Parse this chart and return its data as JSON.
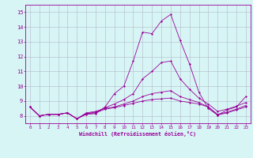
{
  "xlabel": "Windchill (Refroidissement éolien,°C)",
  "line_color": "#990099",
  "bg_color": "#d8f5f5",
  "grid_color": "#b0b8c8",
  "xlim": [
    -0.5,
    23.5
  ],
  "ylim": [
    7.5,
    15.5
  ],
  "xticks": [
    0,
    1,
    2,
    3,
    4,
    5,
    6,
    7,
    8,
    9,
    10,
    11,
    12,
    13,
    14,
    15,
    16,
    17,
    18,
    19,
    20,
    21,
    22,
    23
  ],
  "yticks": [
    8,
    9,
    10,
    11,
    12,
    13,
    14,
    15
  ],
  "series": [
    [
      8.6,
      8.0,
      8.1,
      8.1,
      8.2,
      7.8,
      8.1,
      8.15,
      8.6,
      9.5,
      10.0,
      11.7,
      13.65,
      13.55,
      14.4,
      14.85,
      13.1,
      11.5,
      9.6,
      8.5,
      8.05,
      8.4,
      8.6,
      9.3
    ],
    [
      8.6,
      8.0,
      8.1,
      8.1,
      8.2,
      7.8,
      8.15,
      8.25,
      8.55,
      8.8,
      9.1,
      9.5,
      10.5,
      11.0,
      11.6,
      11.7,
      10.5,
      9.8,
      9.2,
      8.8,
      8.3,
      8.45,
      8.65,
      8.9
    ],
    [
      8.6,
      8.0,
      8.1,
      8.1,
      8.2,
      7.8,
      8.2,
      8.3,
      8.5,
      8.6,
      8.8,
      9.0,
      9.3,
      9.5,
      9.6,
      9.7,
      9.3,
      9.1,
      8.9,
      8.6,
      8.1,
      8.25,
      8.45,
      8.7
    ],
    [
      8.6,
      8.0,
      8.1,
      8.1,
      8.2,
      7.8,
      8.15,
      8.2,
      8.45,
      8.55,
      8.7,
      8.85,
      9.0,
      9.1,
      9.15,
      9.2,
      9.0,
      8.9,
      8.8,
      8.6,
      8.05,
      8.2,
      8.4,
      8.6
    ]
  ]
}
